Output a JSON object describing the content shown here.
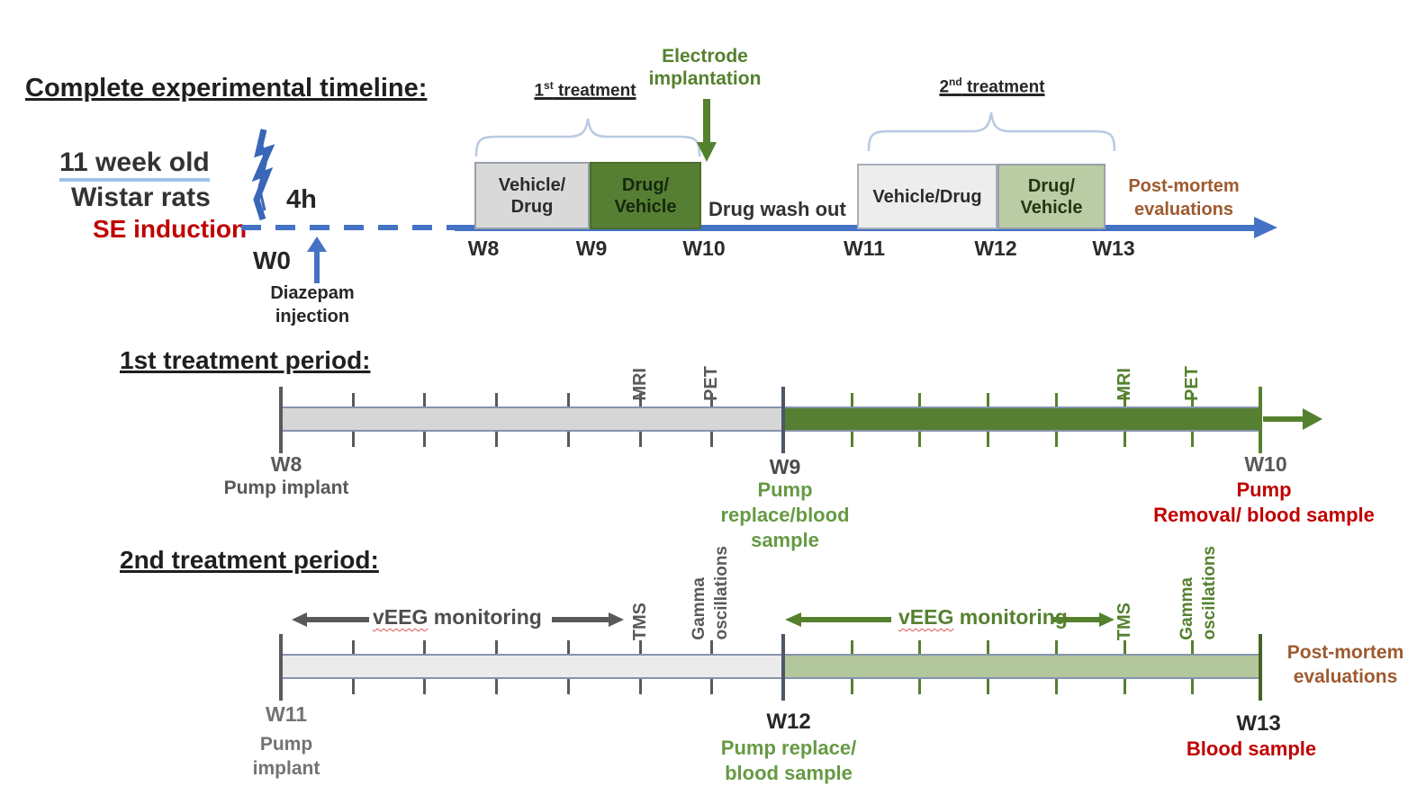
{
  "title": "Complete experimental timeline:",
  "subject": {
    "age": "11 week old",
    "strain": "Wistar rats",
    "induction": "SE induction",
    "delay": "4h",
    "week0": "W0",
    "diazepam": [
      "Diazepam",
      "injection"
    ]
  },
  "overview": {
    "treatment1": {
      "num": "1",
      "sup": "st",
      "rest": " treatment"
    },
    "treatment2": {
      "num": "2",
      "sup": "nd",
      "rest": " treatment"
    },
    "electrode": [
      "Electrode",
      "implantation"
    ],
    "boxes": {
      "b1": [
        "Vehicle/",
        "Drug"
      ],
      "b2": [
        "Drug/",
        "Vehicle"
      ],
      "b3": "Vehicle/Drug",
      "b4": [
        "Drug/",
        "Vehicle"
      ]
    },
    "washout": "Drug wash out",
    "postmortem": [
      "Post-mortem",
      "evaluations"
    ],
    "weeks": [
      "W8",
      "W9",
      "W10",
      "W11",
      "W12",
      "W13"
    ]
  },
  "period1": {
    "heading": "1st treatment period:",
    "mri_gray": "MRI",
    "pet_gray": "PET",
    "mri_green": "MRI",
    "pet_green": "PET",
    "w8": {
      "week": "W8",
      "label": "Pump implant"
    },
    "w9": {
      "week": "W9",
      "label": [
        "Pump",
        "replace/blood",
        "sample"
      ]
    },
    "w10": {
      "week": "W10",
      "label": [
        "Pump",
        "Removal/ blood sample"
      ]
    }
  },
  "period2": {
    "heading": "2nd treatment period:",
    "veeg1": {
      "word": "vEEG",
      "rest": " monitoring"
    },
    "veeg2": {
      "word": "vEEG",
      "rest": " monitoring"
    },
    "tms1": "TMS",
    "gamma1": [
      "Gamma",
      "oscillations"
    ],
    "tms2": "TMS",
    "gamma2": [
      "Gamma",
      "oscillations"
    ],
    "postmortem": [
      "Post-mortem",
      "evaluations"
    ],
    "w11": {
      "week": "W11",
      "label": [
        "Pump",
        "implant"
      ]
    },
    "w12": {
      "week": "W12",
      "label": [
        "Pump replace/",
        "blood sample"
      ]
    },
    "w13": {
      "week": "W13",
      "label": "Blood sample"
    }
  },
  "colors": {
    "timeline_blue": "#4472C4",
    "alert_red": "#C00000",
    "dark_green": "#55812F",
    "mid_green_text": "#669A44",
    "light_green_bar": "#B3C79C",
    "light_green_box": "#B9CCA3",
    "brown": "#9E5A2E",
    "gray_bar": "#D6D6D6",
    "light_gray_bar": "#EBEBEB",
    "gray_text": "#595959"
  }
}
